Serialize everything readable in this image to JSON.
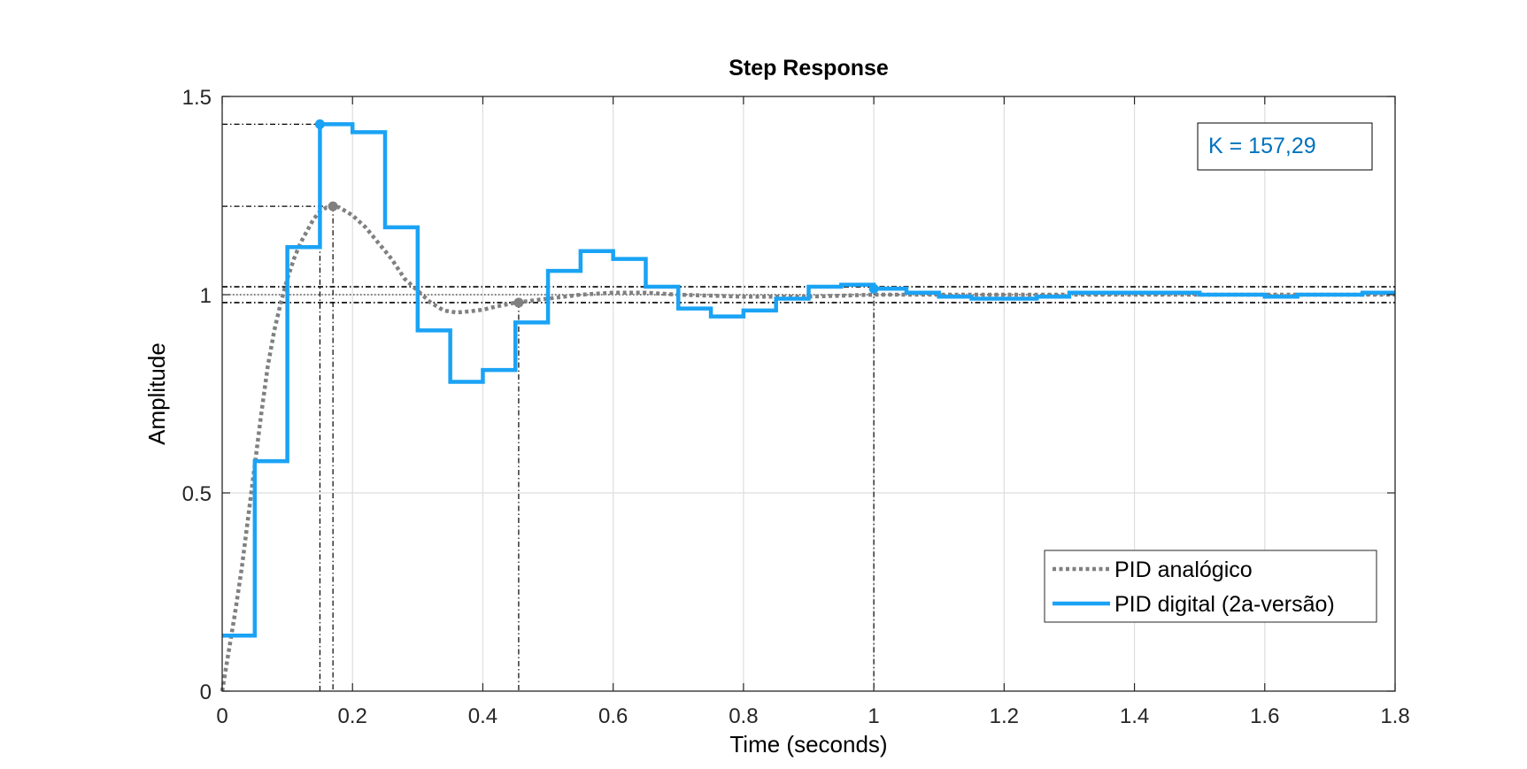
{
  "chart_data": {
    "type": "line",
    "title": "Step Response",
    "xlabel": "Time (seconds)",
    "ylabel": "Amplitude",
    "xlim": [
      0,
      1.8
    ],
    "ylim": [
      0,
      1.5
    ],
    "x_ticks": [
      0,
      0.2,
      0.4,
      0.6,
      0.8,
      1,
      1.2,
      1.4,
      1.6,
      1.8
    ],
    "x_tick_labels": [
      "0",
      "0.2",
      "0.4",
      "0.6",
      "0.8",
      "1",
      "1.2",
      "1.4",
      "1.6",
      "1.8"
    ],
    "y_ticks": [
      0,
      0.5,
      1,
      1.5
    ],
    "y_tick_labels": [
      "0",
      "0.5",
      "1",
      "1.5"
    ],
    "grid": true,
    "legend_position": "bottom-right",
    "annotation": {
      "text": "K = 157,29",
      "color": "#0072bd"
    },
    "series": [
      {
        "name": "PID analógico",
        "style": "dotted",
        "color": "#808080",
        "x": [
          0,
          0.01,
          0.02,
          0.03,
          0.04,
          0.05,
          0.06,
          0.07,
          0.08,
          0.09,
          0.1,
          0.11,
          0.12,
          0.13,
          0.14,
          0.15,
          0.16,
          0.17,
          0.18,
          0.19,
          0.2,
          0.22,
          0.24,
          0.26,
          0.28,
          0.3,
          0.32,
          0.34,
          0.36,
          0.38,
          0.4,
          0.42,
          0.45,
          0.5,
          0.55,
          0.6,
          0.65,
          0.7,
          0.8,
          0.9,
          1.0,
          1.2,
          1.4,
          1.6,
          1.8
        ],
        "y": [
          0,
          0.1,
          0.2,
          0.31,
          0.44,
          0.57,
          0.7,
          0.82,
          0.91,
          0.98,
          1.04,
          1.09,
          1.13,
          1.16,
          1.19,
          1.21,
          1.22,
          1.223,
          1.22,
          1.21,
          1.2,
          1.17,
          1.13,
          1.09,
          1.04,
          1.01,
          0.98,
          0.96,
          0.955,
          0.958,
          0.962,
          0.97,
          0.98,
          0.99,
          1.0,
          1.005,
          1.005,
          1.0,
          0.995,
          0.995,
          1.0,
          1.0,
          1.0,
          1.0,
          1.0
        ]
      },
      {
        "name": "PID digital (2a-versão)",
        "style": "stairs",
        "color": "#1aa3f5",
        "sample_time": 0.05,
        "x": [
          0,
          0.05,
          0.1,
          0.15,
          0.2,
          0.25,
          0.3,
          0.35,
          0.4,
          0.45,
          0.5,
          0.55,
          0.6,
          0.65,
          0.7,
          0.75,
          0.8,
          0.85,
          0.9,
          0.95,
          1.0,
          1.05,
          1.1,
          1.15,
          1.2,
          1.25,
          1.3,
          1.35,
          1.4,
          1.45,
          1.5,
          1.55,
          1.6,
          1.65,
          1.7,
          1.75,
          1.8
        ],
        "y": [
          0.14,
          0.58,
          1.12,
          1.43,
          1.41,
          1.17,
          0.91,
          0.78,
          0.81,
          0.93,
          1.06,
          1.11,
          1.09,
          1.02,
          0.965,
          0.945,
          0.96,
          0.99,
          1.02,
          1.025,
          1.015,
          1.005,
          0.995,
          0.99,
          0.99,
          0.995,
          1.005,
          1.005,
          1.005,
          1.005,
          1.0,
          1.0,
          0.995,
          1.0,
          1.0,
          1.005,
          1.005
        ]
      }
    ],
    "characteristic_points": {
      "analog_peak": {
        "x": 0.17,
        "y": 1.223
      },
      "analog_settling": {
        "x": 0.455,
        "y": 0.98
      },
      "digital_peak": {
        "x": 0.15,
        "y": 1.43
      },
      "digital_settling": {
        "x": 1.0,
        "y": 1.015
      },
      "settling_band": [
        0.98,
        1.02
      ],
      "final_value": 1.0
    }
  }
}
